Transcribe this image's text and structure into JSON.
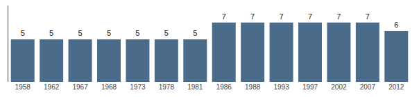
{
  "chart_data": {
    "type": "bar",
    "categories": [
      "1958",
      "1962",
      "1967",
      "1968",
      "1973",
      "1978",
      "1981",
      "1986",
      "1988",
      "1993",
      "1997",
      "2002",
      "2007",
      "2012"
    ],
    "values": [
      5,
      5,
      5,
      5,
      5,
      5,
      5,
      7,
      7,
      7,
      7,
      7,
      7,
      6
    ],
    "color": "#4a6b8a",
    "ylim": [
      0,
      9.0
    ],
    "yticks": [],
    "grid": false,
    "data_labels": true,
    "tick_labels": "x"
  }
}
